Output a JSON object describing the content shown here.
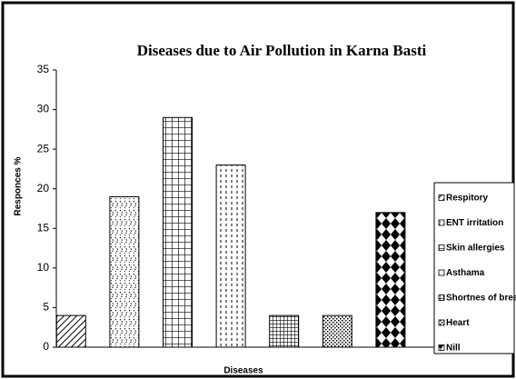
{
  "chart_data": {
    "type": "bar",
    "title": "Diseases due to Air Pollution in Karna Basti",
    "x_label": "Diseases",
    "y_label": "Responces %",
    "categories": [
      "Respitory",
      "ENT irritation",
      "Skin allergies",
      "Asthama",
      "Shortnes of breath",
      "Heart",
      "Nill"
    ],
    "values": [
      4,
      19,
      29,
      23,
      4,
      4,
      17
    ],
    "ylim": [
      0,
      35
    ],
    "yticks": [
      0,
      5,
      10,
      15,
      20,
      25,
      30,
      35
    ],
    "grid": false,
    "legend": "right"
  }
}
